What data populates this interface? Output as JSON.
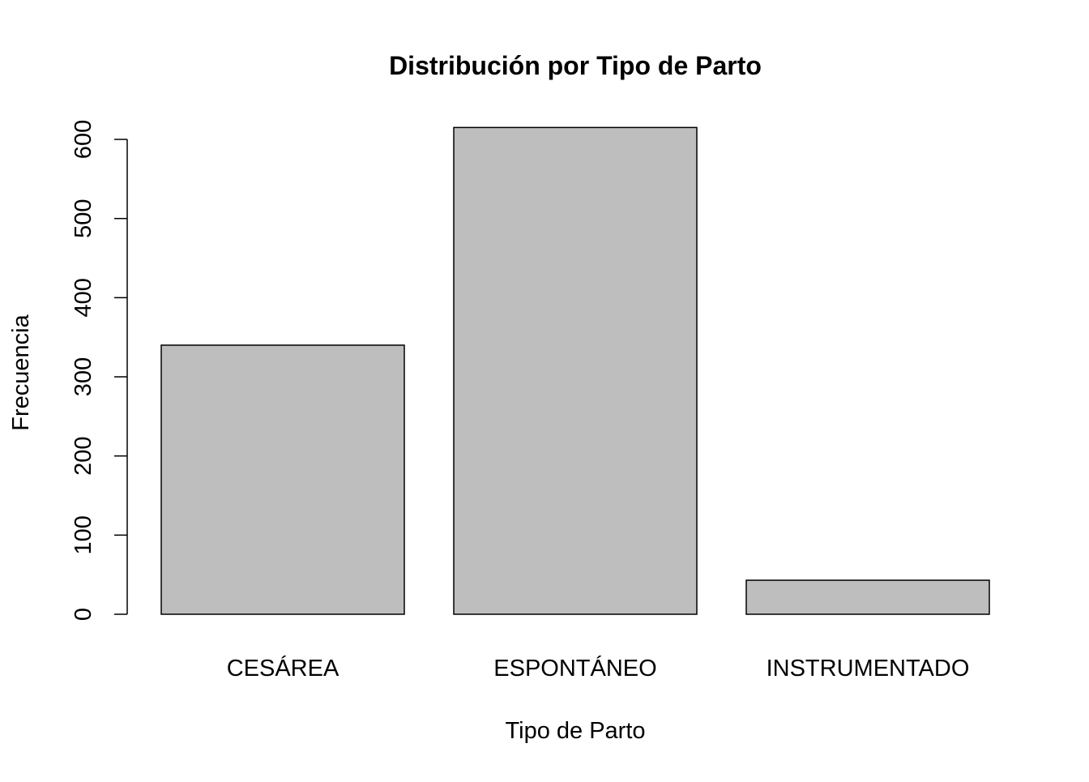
{
  "chart_data": {
    "type": "bar",
    "title": "Distribución por Tipo de Parto",
    "xlabel": "Tipo de Parto",
    "ylabel": "Frecuencia",
    "categories": [
      "CESÁREA",
      "ESPONTÁNEO",
      "INSTRUMENTADO"
    ],
    "values": [
      340,
      615,
      43
    ],
    "ylim": [
      0,
      600
    ],
    "yticks": [
      "0",
      "100",
      "200",
      "300",
      "400",
      "500",
      "600"
    ],
    "grid": false,
    "legend": "none",
    "bar_fill": "#bebebe",
    "bar_stroke": "#000000"
  }
}
